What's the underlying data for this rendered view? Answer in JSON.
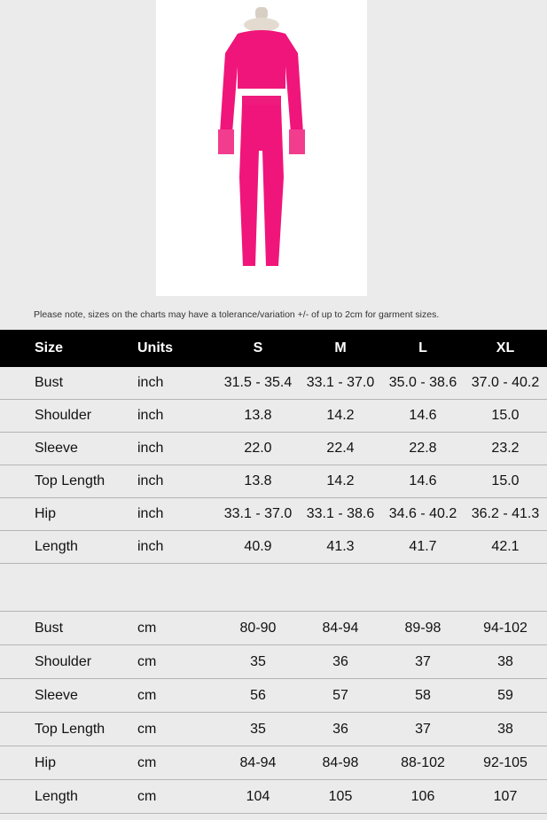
{
  "product_image": {
    "alt": "pink crochet fringe top and pants set on mannequin",
    "color": "#f0157a"
  },
  "note": "Please note, sizes on the charts may have a tolerance/variation +/- of up to 2cm for garment sizes.",
  "header": [
    "Size",
    "Units",
    "S",
    "M",
    "L",
    "XL"
  ],
  "inch_rows": [
    [
      "Bust",
      "inch",
      "31.5 - 35.4",
      "33.1 - 37.0",
      "35.0 - 38.6",
      "37.0 - 40.2"
    ],
    [
      "Shoulder",
      "inch",
      "13.8",
      "14.2",
      "14.6",
      "15.0"
    ],
    [
      "Sleeve",
      "inch",
      "22.0",
      "22.4",
      "22.8",
      "23.2"
    ],
    [
      "Top Length",
      "inch",
      "13.8",
      "14.2",
      "14.6",
      "15.0"
    ],
    [
      "Hip",
      "inch",
      "33.1 - 37.0",
      "33.1 - 38.6",
      "34.6 - 40.2",
      "36.2 - 41.3"
    ],
    [
      "Length",
      "inch",
      "40.9",
      "41.3",
      "41.7",
      "42.1"
    ]
  ],
  "cm_rows": [
    [
      "Bust",
      "cm",
      "80-90",
      "84-94",
      "89-98",
      "94-102"
    ],
    [
      "Shoulder",
      "cm",
      "35",
      "36",
      "37",
      "38"
    ],
    [
      "Sleeve",
      "cm",
      "56",
      "57",
      "58",
      "59"
    ],
    [
      "Top Length",
      "cm",
      "35",
      "36",
      "37",
      "38"
    ],
    [
      "Hip",
      "cm",
      "84-94",
      "84-98",
      "88-102",
      "92-105"
    ],
    [
      "Length",
      "cm",
      "104",
      "105",
      "106",
      "107"
    ]
  ]
}
